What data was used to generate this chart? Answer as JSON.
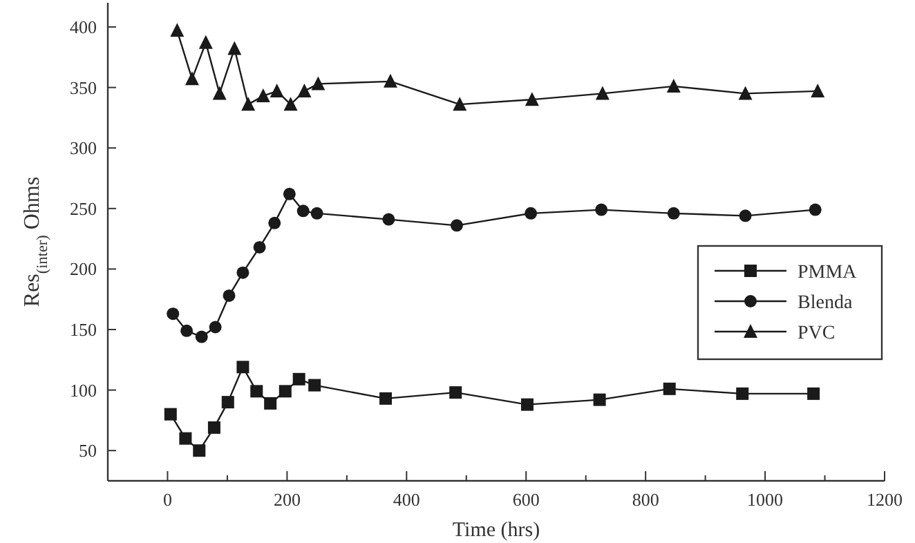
{
  "chart_data": {
    "type": "line",
    "xlabel": "Time (hrs)",
    "ylabel": "Res$_{(inter)}$ Ohms",
    "xlim": [
      -100,
      1200
    ],
    "ylim": [
      25,
      420
    ],
    "xticks": [
      {
        "value": -100,
        "label": null
      },
      0,
      {
        "value": 100,
        "label": null
      },
      200,
      {
        "value": 300,
        "label": null
      },
      400,
      {
        "value": 500,
        "label": null
      },
      600,
      {
        "value": 700,
        "label": null
      },
      800,
      {
        "value": 900,
        "label": null
      },
      1000,
      {
        "value": 1100,
        "label": null
      },
      1200
    ],
    "yticks": [
      50,
      100,
      150,
      200,
      250,
      300,
      350,
      400
    ],
    "legend": "right",
    "grid": false,
    "series": [
      {
        "name": "PMMA",
        "color": "#1a1a1a",
        "marker": "square",
        "x": [
          5,
          30,
          53,
          78,
          101,
          126,
          149,
          172,
          197,
          220,
          246,
          365,
          482,
          602,
          723,
          840,
          962,
          1081
        ],
        "values": [
          80,
          60,
          50,
          69,
          90,
          119,
          99,
          89,
          99,
          109,
          104,
          93,
          98,
          88,
          92,
          101,
          97,
          97
        ]
      },
      {
        "name": "Blenda",
        "color": "#1a1a1a",
        "marker": "circle",
        "x": [
          9,
          32,
          57,
          80,
          103,
          126,
          154,
          179,
          204,
          227,
          250,
          370,
          484,
          608,
          726,
          847,
          967,
          1084
        ],
        "values": [
          163,
          149,
          144,
          152,
          178,
          197,
          218,
          238,
          262,
          248,
          246,
          241,
          236,
          246,
          249,
          246,
          244,
          249
        ]
      },
      {
        "name": "PVC",
        "color": "#1a1a1a",
        "marker": "triangle",
        "x": [
          16,
          41,
          64,
          87,
          112,
          135,
          160,
          183,
          206,
          229,
          252,
          373,
          489,
          610,
          728,
          847,
          967,
          1088
        ],
        "values": [
          397,
          357,
          387,
          345,
          382,
          336,
          343,
          347,
          336,
          347,
          353,
          355,
          336,
          340,
          345,
          351,
          345,
          347
        ]
      }
    ]
  }
}
